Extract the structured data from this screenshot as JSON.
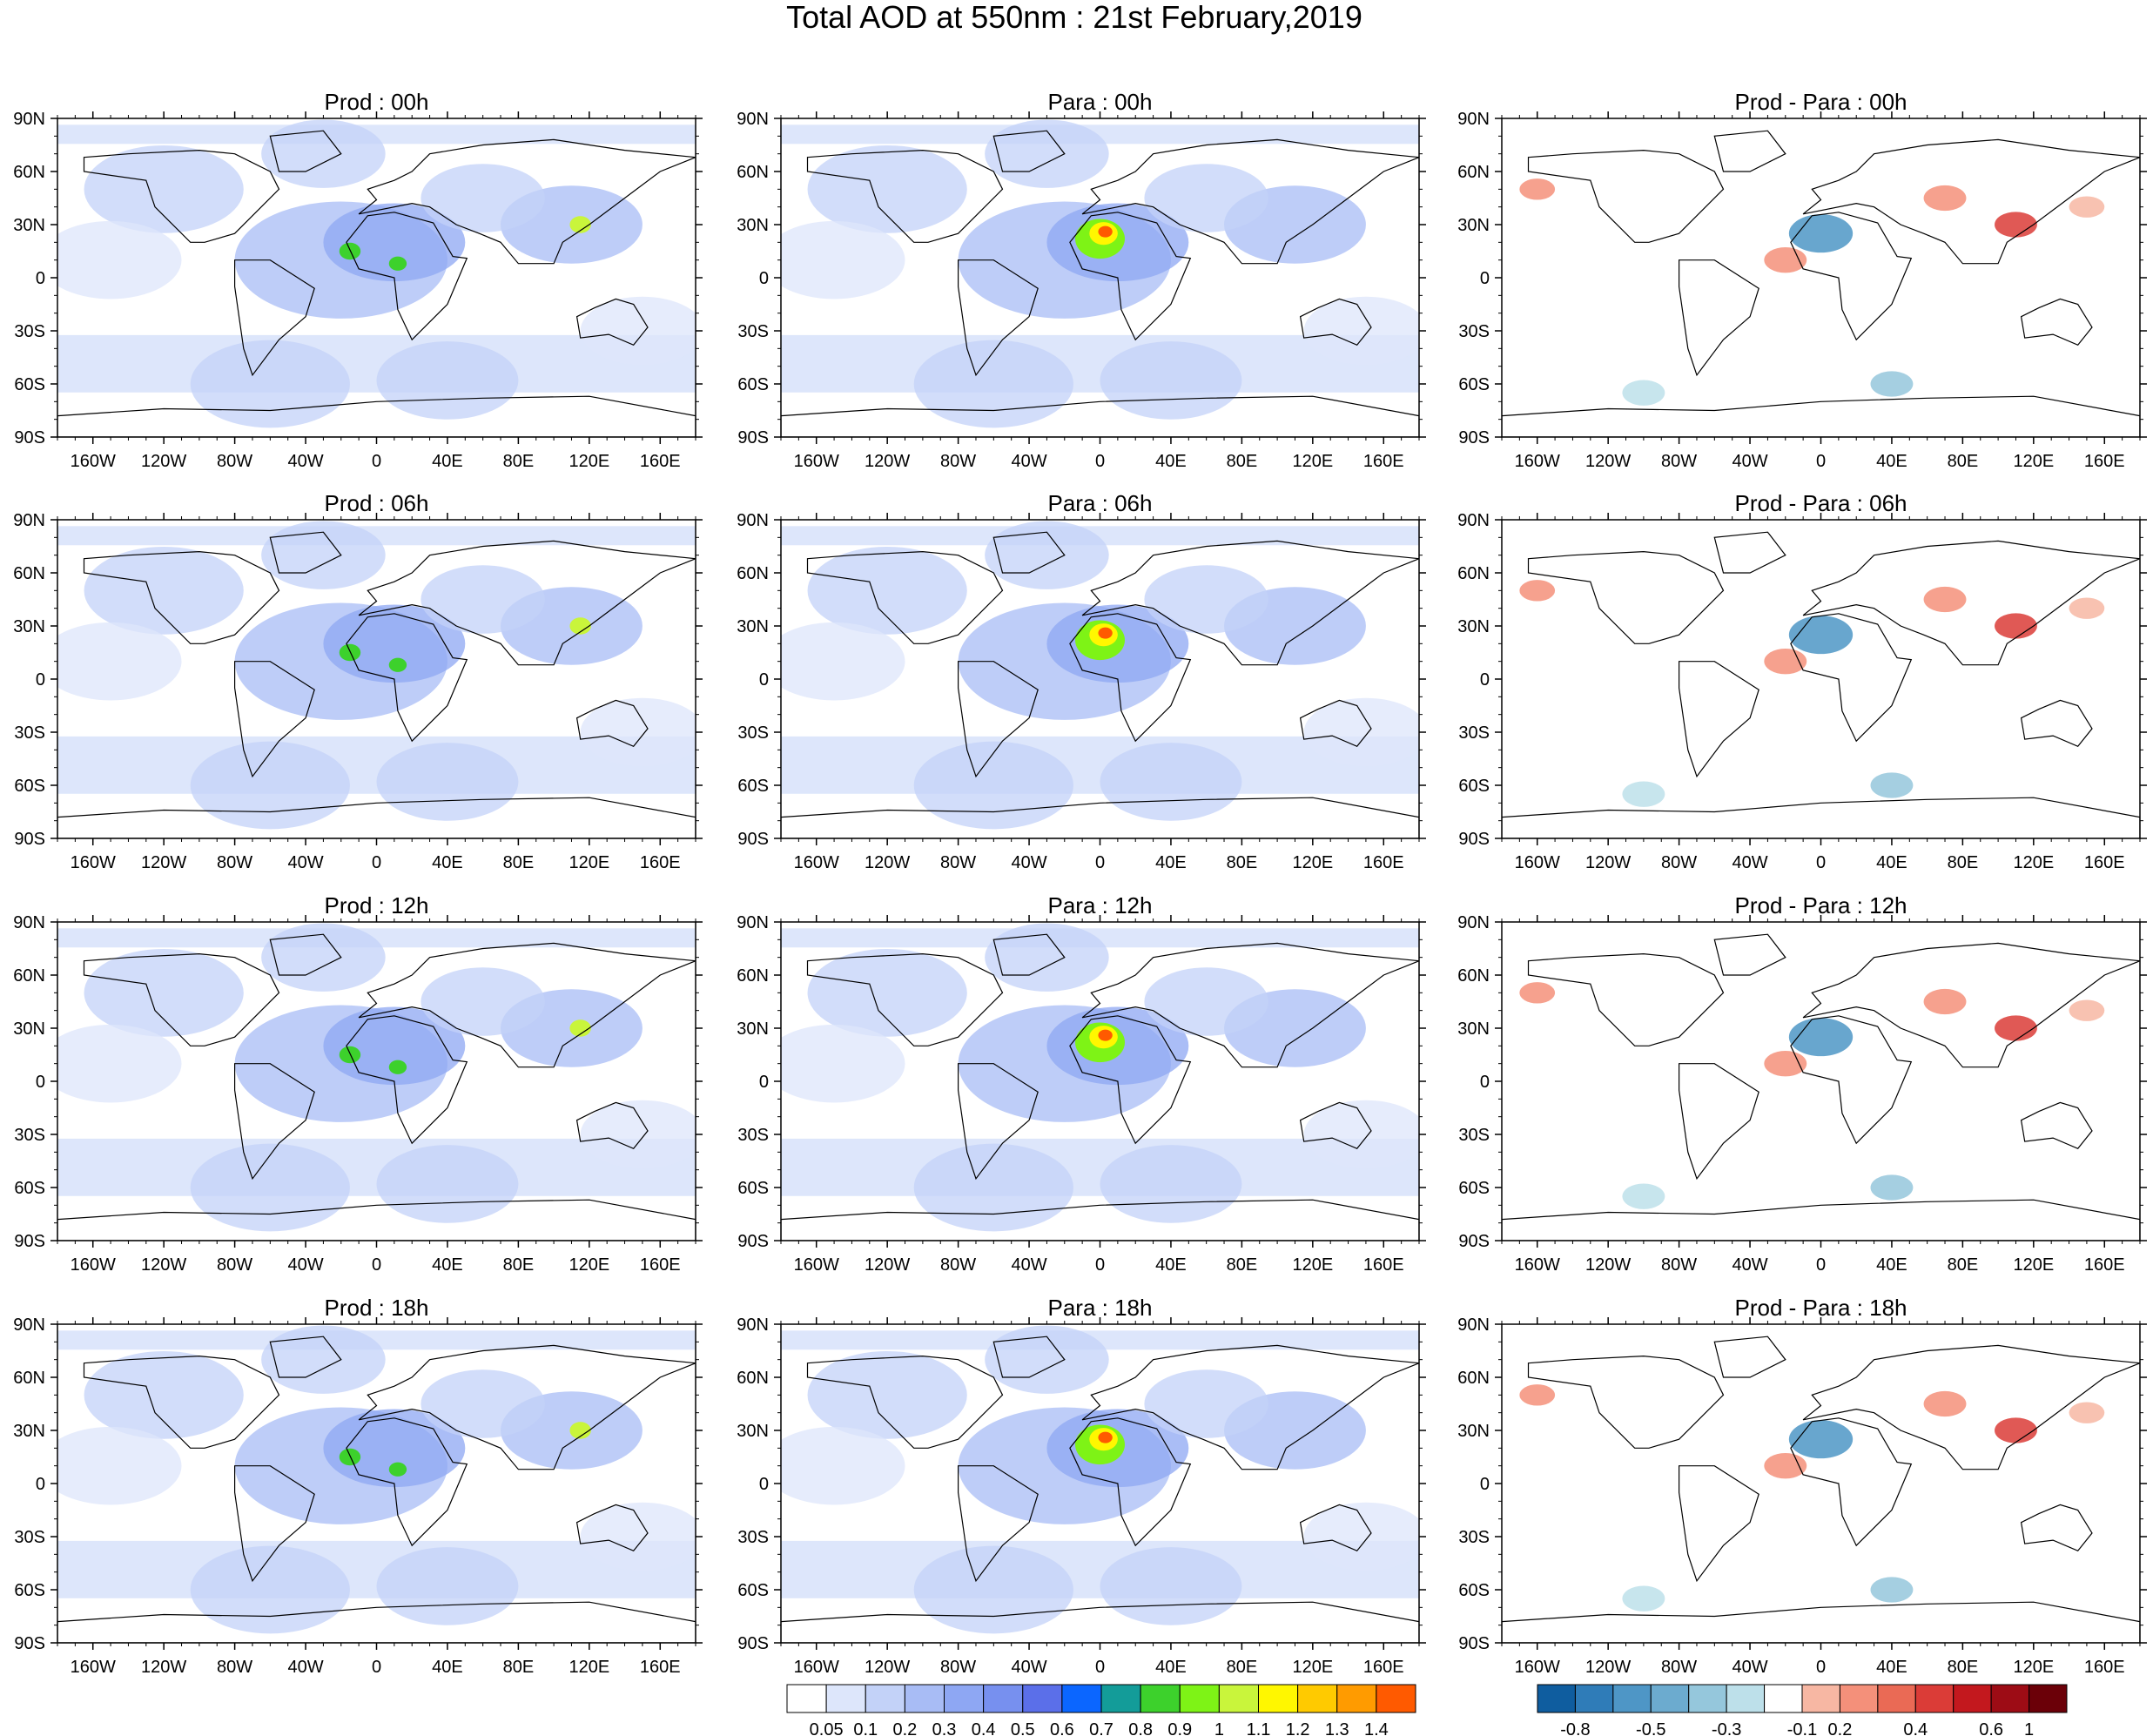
{
  "title": "Total AOD at 550nm : 21st February,2019",
  "chart_data": [
    {
      "type": "heatmap",
      "title": "Prod : 00h",
      "variable": "total_aod",
      "model": "Prod",
      "hour": "00h"
    },
    {
      "type": "heatmap",
      "title": "Para : 00h",
      "variable": "total_aod",
      "model": "Para",
      "hour": "00h"
    },
    {
      "type": "heatmap",
      "title": "Prod - Para : 00h",
      "variable": "aod_difference",
      "model": "Prod - Para",
      "hour": "00h"
    },
    {
      "type": "heatmap",
      "title": "Prod : 06h",
      "variable": "total_aod",
      "model": "Prod",
      "hour": "06h"
    },
    {
      "type": "heatmap",
      "title": "Para : 06h",
      "variable": "total_aod",
      "model": "Para",
      "hour": "06h"
    },
    {
      "type": "heatmap",
      "title": "Prod - Para : 06h",
      "variable": "aod_difference",
      "model": "Prod - Para",
      "hour": "06h"
    },
    {
      "type": "heatmap",
      "title": "Prod : 12h",
      "variable": "total_aod",
      "model": "Prod",
      "hour": "12h"
    },
    {
      "type": "heatmap",
      "title": "Para : 12h",
      "variable": "total_aod",
      "model": "Para",
      "hour": "12h"
    },
    {
      "type": "heatmap",
      "title": "Prod - Para : 12h",
      "variable": "aod_difference",
      "model": "Prod - Para",
      "hour": "12h"
    },
    {
      "type": "heatmap",
      "title": "Prod : 18h",
      "variable": "total_aod",
      "model": "Prod",
      "hour": "18h"
    },
    {
      "type": "heatmap",
      "title": "Para : 18h",
      "variable": "total_aod",
      "model": "Para",
      "hour": "18h"
    },
    {
      "type": "heatmap",
      "title": "Prod - Para : 18h",
      "variable": "aod_difference",
      "model": "Prod - Para",
      "hour": "18h"
    }
  ],
  "axes": {
    "lat_ticks": [
      "90N",
      "60N",
      "30N",
      "0",
      "30S",
      "60S",
      "90S"
    ],
    "lon_ticks": [
      "160W",
      "120W",
      "80W",
      "40W",
      "0",
      "40E",
      "80E",
      "120E",
      "160E"
    ],
    "lat_range": [
      -90,
      90
    ],
    "lon_range": [
      -180,
      180
    ]
  },
  "aod_colorbar": {
    "labels": [
      "0.05",
      "0.1",
      "0.2",
      "0.3",
      "0.4",
      "0.5",
      "0.6",
      "0.7",
      "0.8",
      "0.9",
      "1",
      "1.1",
      "1.2",
      "1.3",
      "1.4"
    ],
    "colors": [
      "#ffffff",
      "#dde6fb",
      "#c3d2f8",
      "#a8bcf5",
      "#8ea7f3",
      "#7790ef",
      "#5b6fe9",
      "#0b66ff",
      "#139c99",
      "#3dd12c",
      "#7ef316",
      "#c9f53b",
      "#fff700",
      "#ffca00",
      "#ff9b00",
      "#ff5a00"
    ]
  },
  "diff_colorbar": {
    "labels": [
      "-0.8",
      "-0.5",
      "-0.3",
      "-0.1",
      "0.2",
      "0.4",
      "0.6",
      "1"
    ],
    "colors": [
      "#0f5d9f",
      "#2f7cb8",
      "#4e96c6",
      "#6cabcf",
      "#95c7dc",
      "#bde0ea",
      "#ffffff",
      "#f7b7a3",
      "#f4907a",
      "#ea6a55",
      "#db3c37",
      "#c3181e",
      "#9d0c15",
      "#6b0008"
    ]
  }
}
